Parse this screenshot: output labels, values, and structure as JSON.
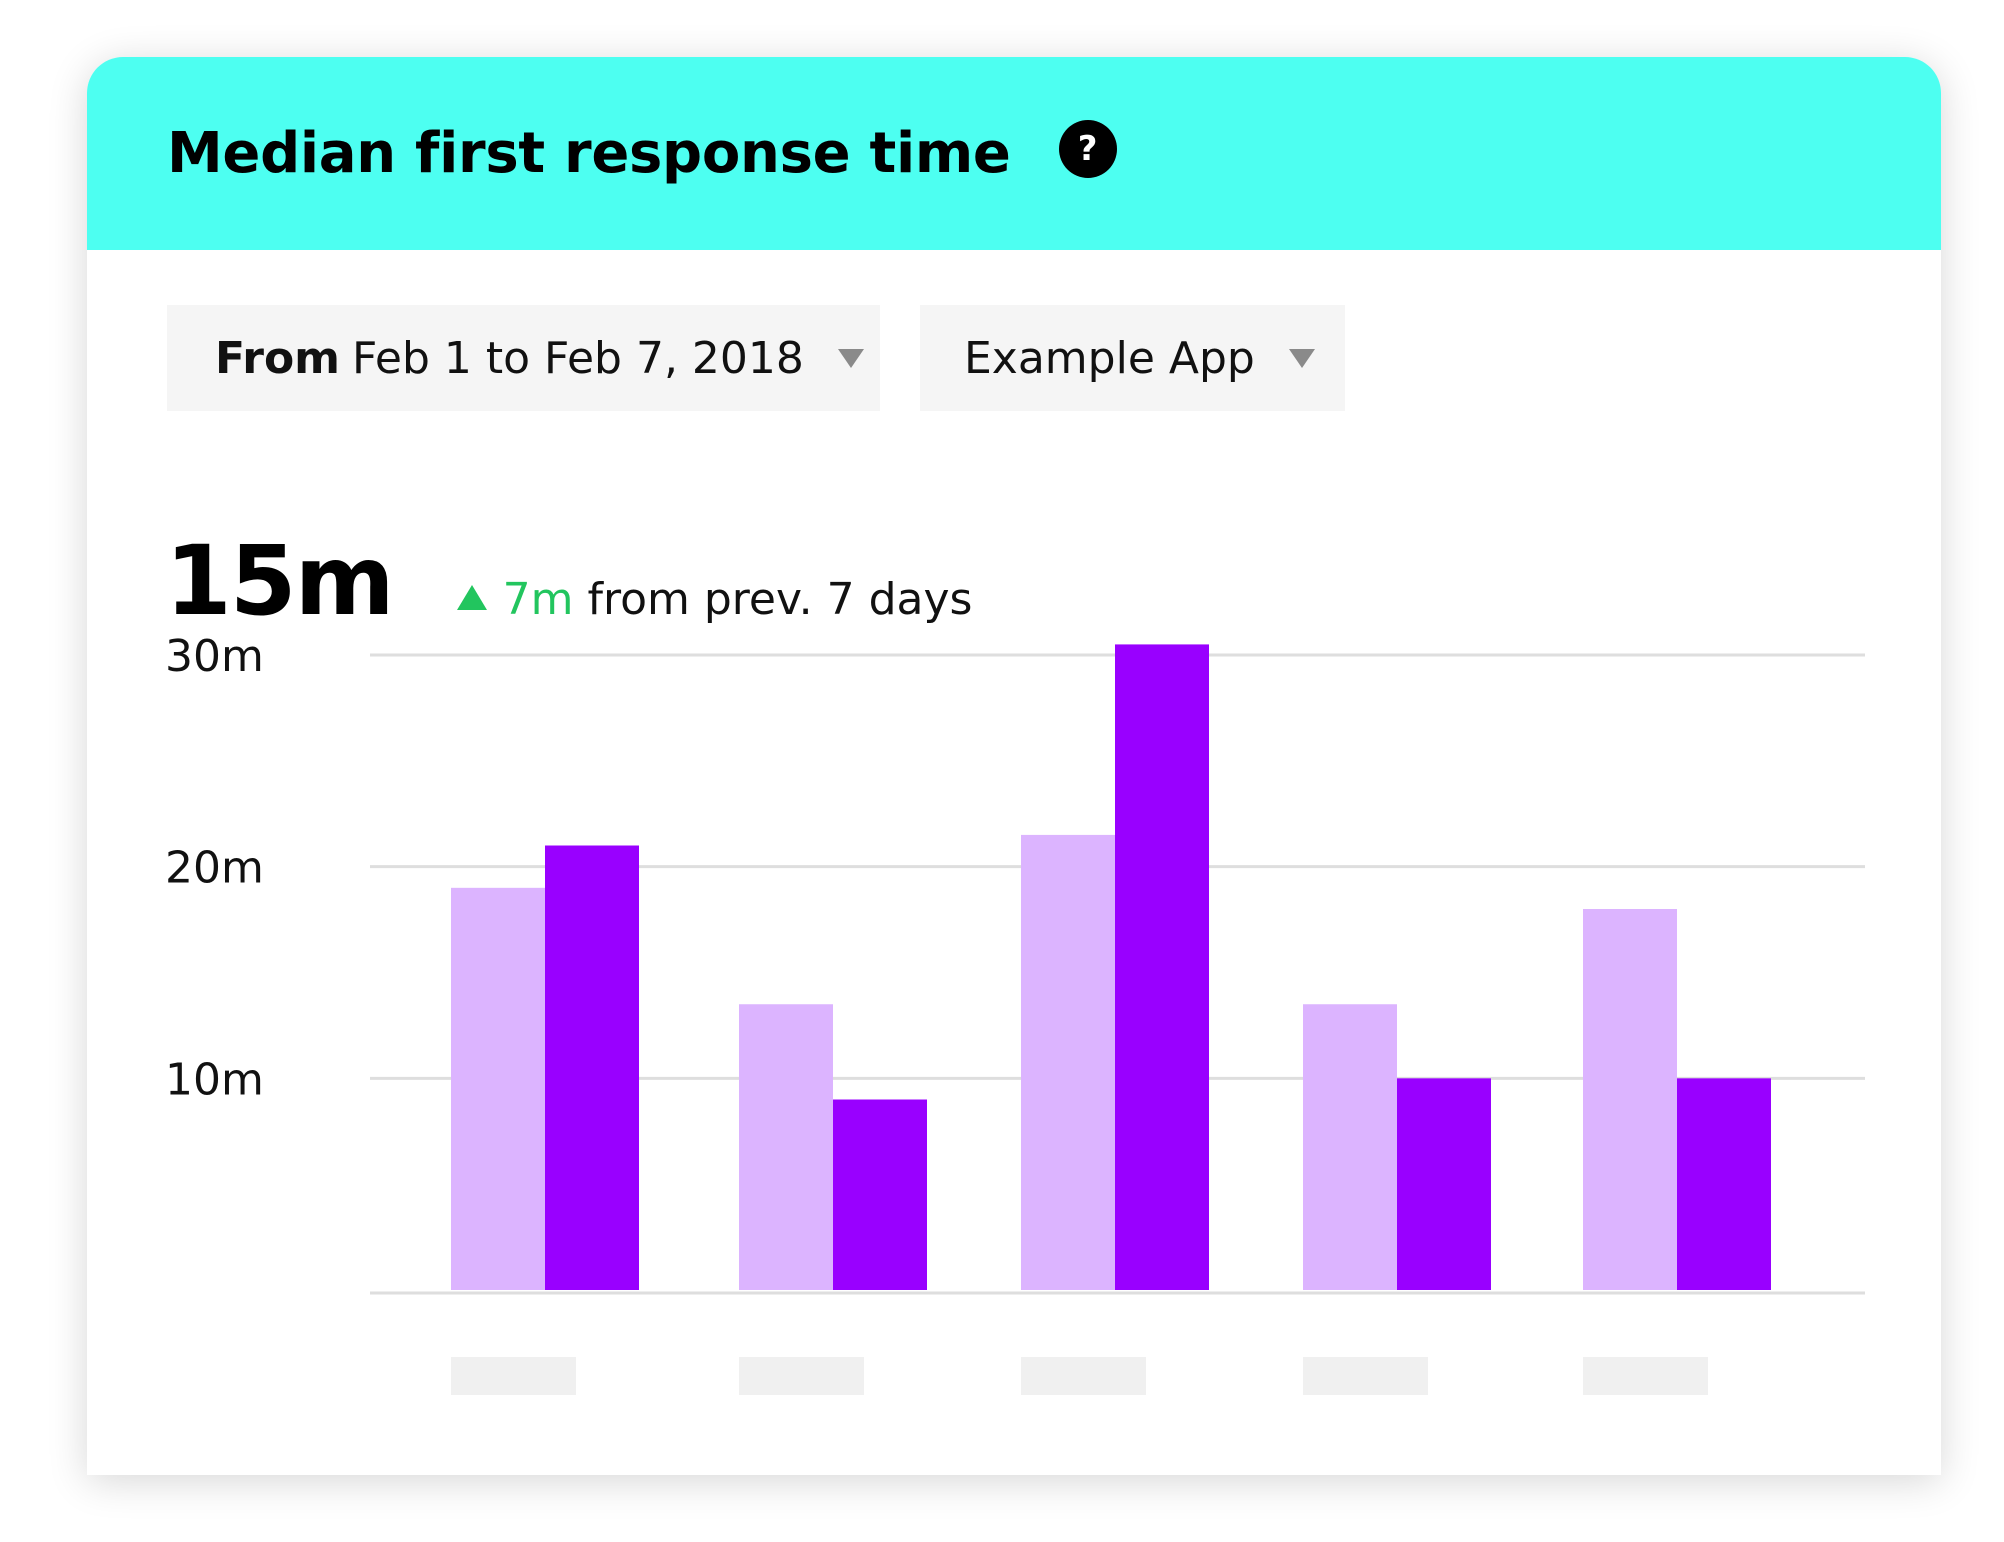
{
  "header": {
    "title": "Median first response time",
    "help_icon_glyph": "?",
    "color": "#4dfff1"
  },
  "filters": {
    "date_prefix": "From",
    "date_range": "Feb 1 to Feb 7, 2018",
    "app": "Example App"
  },
  "summary": {
    "value": "15m",
    "delta_value": "7m",
    "delta_text": "from prev. 7 days",
    "delta_direction": "up",
    "delta_color": "#22c55e"
  },
  "chart_data": {
    "type": "bar",
    "categories": [
      "",
      "",
      "",
      "",
      ""
    ],
    "series": [
      {
        "values": [
          19,
          13.5,
          21.5,
          13.5,
          18
        ],
        "color": "#dcb4ff"
      },
      {
        "values": [
          21,
          9,
          30.5,
          10,
          10
        ],
        "color": "#9900ff"
      }
    ],
    "yticks": [
      "10m",
      "20m",
      "30m"
    ],
    "ylim": [
      0,
      30
    ],
    "grid": true,
    "legend": "none"
  }
}
